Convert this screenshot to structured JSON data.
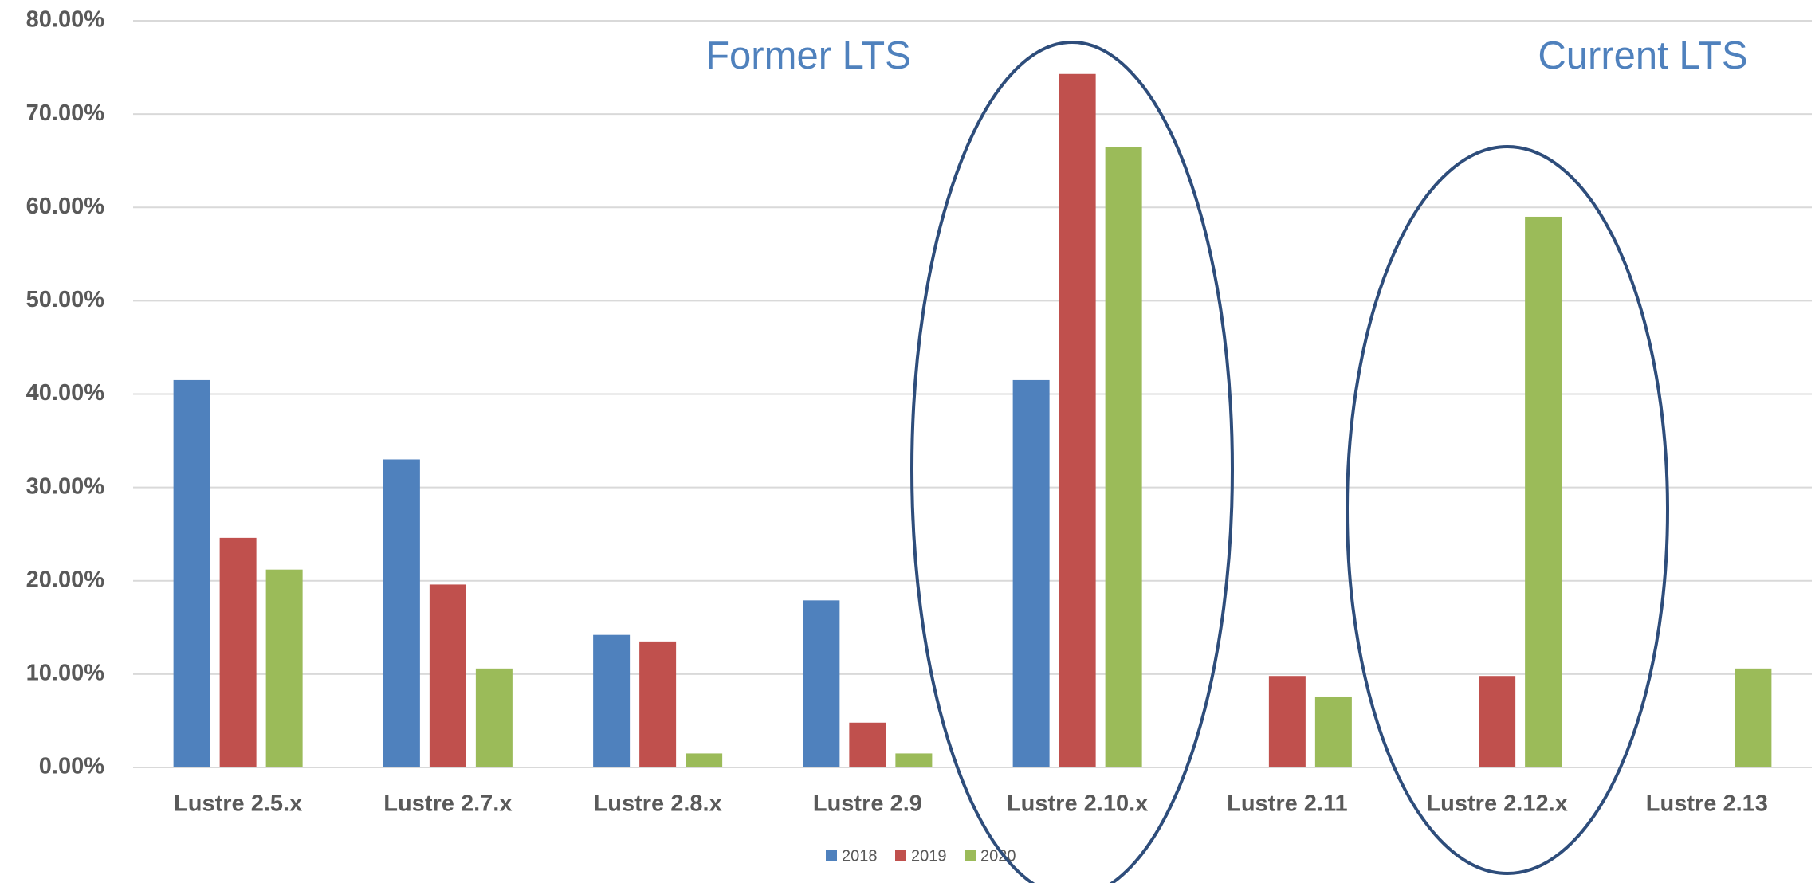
{
  "chart_data": {
    "type": "bar",
    "categories": [
      "Lustre 2.5.x",
      "Lustre 2.7.x",
      "Lustre 2.8.x",
      "Lustre 2.9",
      "Lustre 2.10.x",
      "Lustre 2.11",
      "Lustre 2.12.x",
      "Lustre 2.13"
    ],
    "series": [
      {
        "name": "2018",
        "color": "#4f81bd",
        "values": [
          41.5,
          33.0,
          14.2,
          17.9,
          41.5,
          null,
          null,
          null
        ]
      },
      {
        "name": "2019",
        "color": "#c0504d",
        "values": [
          24.6,
          19.6,
          13.5,
          4.8,
          74.3,
          9.8,
          9.8,
          null
        ]
      },
      {
        "name": "2020",
        "color": "#9bbb59",
        "values": [
          21.2,
          10.6,
          1.5,
          1.5,
          66.5,
          7.6,
          59.0,
          10.6
        ]
      }
    ],
    "ylim": [
      0,
      80
    ],
    "yticks": [
      {
        "value": 0,
        "label": "0.00%"
      },
      {
        "value": 10,
        "label": "10.00%"
      },
      {
        "value": 20,
        "label": "20.00%"
      },
      {
        "value": 30,
        "label": "30.00%"
      },
      {
        "value": 40,
        "label": "40.00%"
      },
      {
        "value": 50,
        "label": "50.00%"
      },
      {
        "value": 60,
        "label": "60.00%"
      },
      {
        "value": 70,
        "label": "70.00%"
      },
      {
        "value": 80,
        "label": "80.00%"
      }
    ],
    "grid": true,
    "legend": "bottom",
    "annotations": [
      "Former LTS",
      "Current LTS"
    ]
  }
}
